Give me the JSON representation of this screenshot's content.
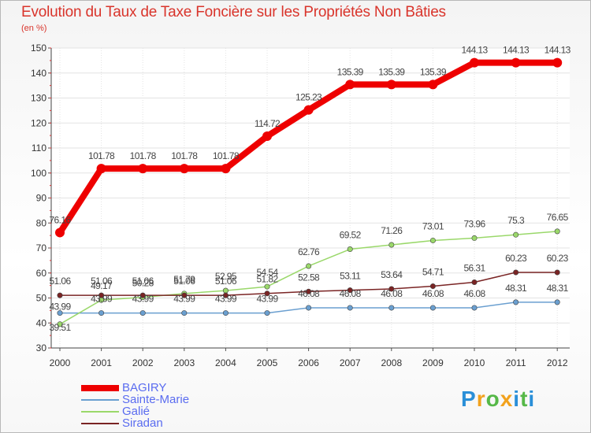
{
  "chart_data": {
    "type": "line",
    "title": "Evolution du Taux de Taxe Foncière sur les Propriétés Non Bâties",
    "ylabel": "(en %)",
    "xlabel": "",
    "ylim": [
      30,
      150
    ],
    "yticks": [
      30,
      40,
      50,
      60,
      70,
      80,
      90,
      100,
      110,
      120,
      130,
      140,
      150
    ],
    "grid": true,
    "legend_position": "bottom-left",
    "x": [
      "2000",
      "2001",
      "2002",
      "2003",
      "2004",
      "2005",
      "2006",
      "2007",
      "2008",
      "2009",
      "2010",
      "2011",
      "2012"
    ],
    "series": [
      {
        "name": "BAGIRY",
        "color": "#ee0000",
        "values": [
          76.16,
          101.78,
          101.78,
          101.78,
          101.78,
          114.72,
          125.23,
          135.39,
          135.39,
          135.39,
          144.13,
          144.13,
          144.13
        ],
        "labels": [
          "76.16",
          "101.78",
          "101.78",
          "101.78",
          "101.78",
          "114.72",
          "125.23",
          "135.39",
          "135.39",
          "135.39",
          "144.13",
          "144.13",
          "144.13"
        ]
      },
      {
        "name": "Sainte-Marie",
        "color": "#6a9fd0",
        "values": [
          43.99,
          43.99,
          43.99,
          43.99,
          43.99,
          43.99,
          46.08,
          46.08,
          46.08,
          46.08,
          46.08,
          48.31,
          48.31
        ],
        "labels": [
          "43.99",
          "43.99",
          "43.99",
          "43.99",
          "43.99",
          "43.99",
          "46.08",
          "46.08",
          "46.08",
          "46.08",
          "46.08",
          "48.31",
          "48.31"
        ]
      },
      {
        "name": "Galié",
        "color": "#9ad86a",
        "values": [
          39.51,
          49.17,
          50.28,
          51.79,
          52.95,
          54.54,
          62.76,
          69.52,
          71.26,
          73.01,
          73.96,
          75.3,
          76.65
        ],
        "labels": [
          "39.51",
          "49.17",
          "50.28",
          "51.79",
          "52.95",
          "54.54",
          "62.76",
          "69.52",
          "71.26",
          "73.01",
          "73.96",
          "75.3",
          "76.65"
        ]
      },
      {
        "name": "Siradan",
        "color": "#7a2424",
        "values": [
          51.06,
          51.06,
          51.06,
          51.06,
          51.06,
          51.82,
          52.58,
          53.11,
          53.64,
          54.71,
          56.31,
          60.23,
          60.23
        ],
        "labels": [
          "51.06",
          "51.06",
          "51.06",
          "51.06",
          "51.06",
          "51.82",
          "52.58",
          "53.11",
          "53.64",
          "54.71",
          "56.31",
          "60.23",
          "60.23"
        ]
      }
    ]
  },
  "logo": {
    "letters": [
      "P",
      "r",
      "o",
      "x",
      "i",
      "t",
      "i"
    ],
    "colors": [
      "#2a8fd8",
      "#f2a21d",
      "#56b848",
      "#f2a21d",
      "#2a8fd8",
      "#56b848",
      "#2a8fd8"
    ]
  }
}
